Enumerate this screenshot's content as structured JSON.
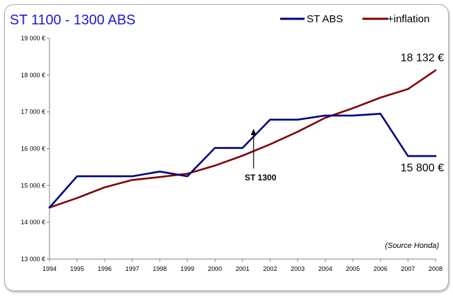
{
  "chart_data": {
    "type": "line",
    "title": "ST 1100 - 1300 ABS",
    "title_color": "#1a1ad6",
    "categories": [
      "1994",
      "1995",
      "1996",
      "1997",
      "1998",
      "1999",
      "2000",
      "2001",
      "2002",
      "2003",
      "2004",
      "2005",
      "2006",
      "2007",
      "2008"
    ],
    "series": [
      {
        "name": "ST ABS",
        "color": "#000080",
        "values": [
          14400,
          15250,
          15250,
          15250,
          15380,
          15250,
          16020,
          16020,
          16790,
          16790,
          16900,
          16900,
          16950,
          15800,
          15800
        ]
      },
      {
        "name": "+inflation",
        "color": "#800000",
        "values": [
          14400,
          14660,
          14950,
          15150,
          15230,
          15320,
          15540,
          15810,
          16120,
          16460,
          16840,
          17100,
          17390,
          17620,
          18132
        ]
      }
    ],
    "ylim": [
      13000,
      19000
    ],
    "yticks": [
      13000,
      14000,
      15000,
      16000,
      17000,
      18000,
      19000
    ],
    "ytick_labels": [
      "13 000 €",
      "14 000 €",
      "15 000 €",
      "16 000 €",
      "17 000 €",
      "18 000 €",
      "19 000 €"
    ],
    "legend_position": "top-right",
    "end_labels": [
      "18 132 €",
      "15 800 €"
    ],
    "annotation": {
      "text": "ST 1300",
      "x_index": 8,
      "x_offset": -0.6,
      "value": 16540
    },
    "source": "(Source Honda)",
    "grid": false
  }
}
